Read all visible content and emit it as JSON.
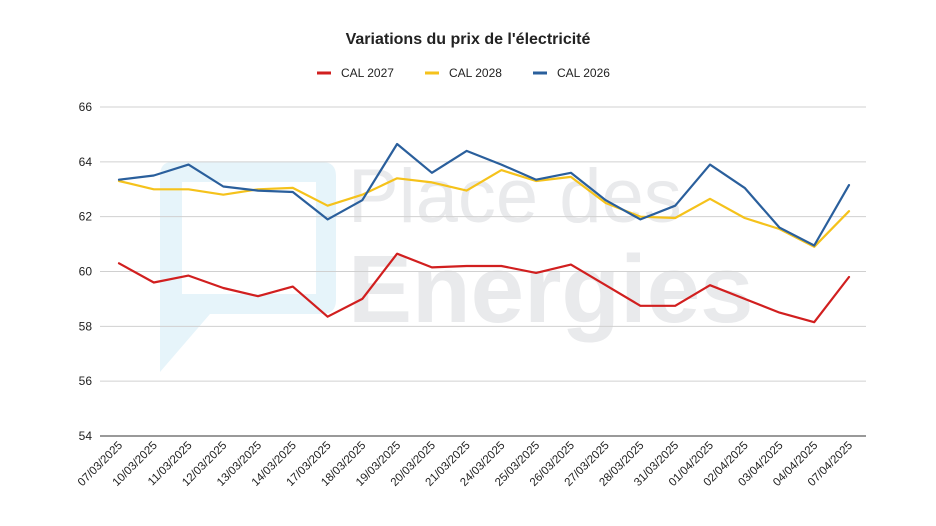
{
  "chart_data": {
    "type": "line",
    "title": "Variations du prix de l'électricité",
    "xlabel": "",
    "ylabel": "",
    "ylim": [
      54,
      66
    ],
    "yticks": [
      54,
      56,
      58,
      60,
      62,
      64,
      66
    ],
    "grid": true,
    "legend_position": "top",
    "categories": [
      "07/03/2025",
      "10/03/2025",
      "11/03/2025",
      "12/03/2025",
      "13/03/2025",
      "14/03/2025",
      "17/03/2025",
      "18/03/2025",
      "19/03/2025",
      "20/03/2025",
      "21/03/2025",
      "24/03/2025",
      "25/03/2025",
      "26/03/2025",
      "27/03/2025",
      "28/03/2025",
      "31/03/2025",
      "01/04/2025",
      "02/04/2025",
      "03/04/2025",
      "04/04/2025",
      "07/04/2025"
    ],
    "series": [
      {
        "name": "CAL 2027",
        "color": "#d11f1f",
        "values": [
          60.3,
          59.6,
          59.85,
          59.4,
          59.1,
          59.45,
          58.35,
          59.0,
          60.65,
          60.15,
          60.2,
          60.2,
          59.95,
          60.25,
          59.5,
          58.75,
          58.75,
          59.5,
          59.0,
          58.5,
          58.15,
          59.8
        ]
      },
      {
        "name": "CAL 2028",
        "color": "#f5c21b",
        "values": [
          63.3,
          63.0,
          63.0,
          62.8,
          63.0,
          63.05,
          62.4,
          62.8,
          63.4,
          63.25,
          62.95,
          63.7,
          63.3,
          63.45,
          62.5,
          62.0,
          61.95,
          62.65,
          61.95,
          61.55,
          60.9,
          62.2
        ]
      },
      {
        "name": "CAL 2026",
        "color": "#2a5f9c",
        "values": [
          63.35,
          63.5,
          63.9,
          63.1,
          62.95,
          62.9,
          61.9,
          62.6,
          64.65,
          63.6,
          64.4,
          63.9,
          63.35,
          63.6,
          62.6,
          61.9,
          62.4,
          63.9,
          63.05,
          61.6,
          60.95,
          63.15
        ]
      }
    ],
    "watermark": {
      "line1": "Place des",
      "line2": "Energies"
    }
  }
}
